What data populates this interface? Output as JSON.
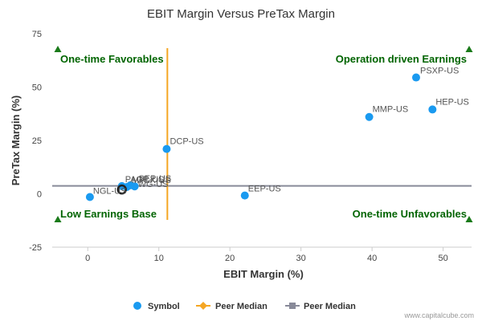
{
  "chart_data": {
    "type": "scatter",
    "title": "EBIT Margin Versus PreTax Margin",
    "xlabel": "EBIT Margin (%)",
    "ylabel": "PreTax Margin (%)",
    "xlim": [
      -5,
      54
    ],
    "ylim": [
      -25,
      75
    ],
    "x_ticks": [
      0,
      10,
      20,
      30,
      40,
      50
    ],
    "y_ticks": [
      -25,
      0,
      25,
      50,
      75
    ],
    "grid": false,
    "legend_position": "bottom",
    "points": [
      {
        "label": "PSXP-US",
        "x": 46.2,
        "y": 54.5
      },
      {
        "label": "HEP-US",
        "x": 48.5,
        "y": 39.5
      },
      {
        "label": "MMP-US",
        "x": 39.6,
        "y": 36.0
      },
      {
        "label": "DCP-US",
        "x": 11.1,
        "y": 21.0
      },
      {
        "label": "EEP-US",
        "x": 22.1,
        "y": -0.8
      },
      {
        "label": "PAGP-US",
        "x": 4.8,
        "y": 3.6
      },
      {
        "label": "SEP-US",
        "x": 6.0,
        "y": 4.0
      },
      {
        "label": "MPLX-US",
        "x": 5.5,
        "y": 3.2
      },
      {
        "label": "WG-US",
        "x": 6.6,
        "y": 3.5
      },
      {
        "label": "NGL-US",
        "x": 0.3,
        "y": -1.5
      },
      {
        "label": "",
        "x": 4.8,
        "y": 2.0,
        "highlight": true
      }
    ],
    "peer_median_x": 11.2,
    "peer_median_y": 3.7,
    "quadrants": {
      "top_left": "One-time Favorables",
      "top_right": "Operation driven Earnings",
      "bottom_left": "Low Earnings Base",
      "bottom_right": "One-time Unfavorables"
    },
    "legend": [
      {
        "label": "Symbol",
        "kind": "dot"
      },
      {
        "label": "Peer Median",
        "kind": "diamond-line"
      },
      {
        "label": "Peer Median",
        "kind": "square-line"
      }
    ],
    "colors": {
      "points": "#1a9af0",
      "median_x": "#f5a623",
      "median_y": "#888a99",
      "quadrant_text": "#006400",
      "quadrant_marker": "#1a7a1a",
      "axis": "#cccccc"
    },
    "credit": "www.capitalcube.com"
  }
}
